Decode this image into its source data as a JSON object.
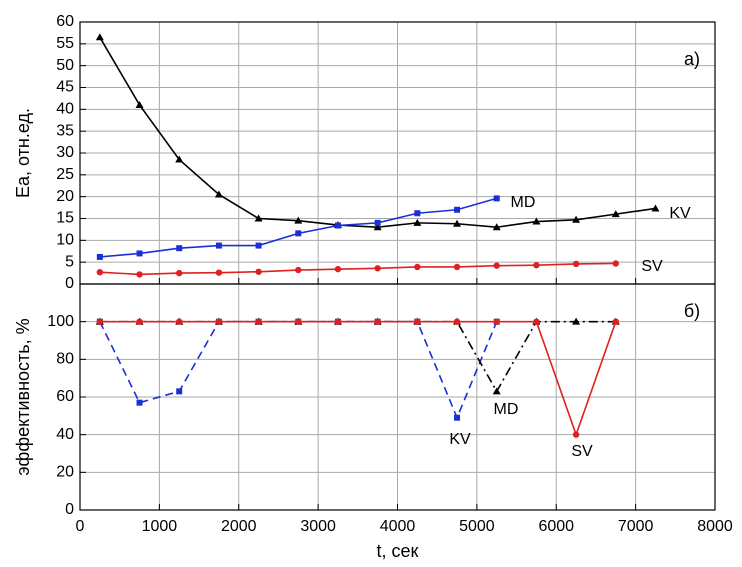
{
  "chart_data": [
    {
      "type": "line",
      "ylabel": "Ea, отн.ед.",
      "panel_label": "а)",
      "xlim": [
        0,
        8000
      ],
      "xticks": [
        0,
        1000,
        2000,
        3000,
        4000,
        5000,
        6000,
        7000,
        8000
      ],
      "ylim": [
        0,
        60
      ],
      "yticks": [
        0,
        5,
        10,
        15,
        20,
        25,
        30,
        35,
        40,
        45,
        50,
        55,
        60
      ],
      "grid": true,
      "series": [
        {
          "name": "MD",
          "color": "#000000",
          "marker": "triangle",
          "dash": "solid",
          "x": [
            250,
            750,
            1250,
            1750,
            2250,
            2750,
            3250,
            3750,
            4250,
            4750,
            5250,
            5750,
            6250,
            6750,
            7250
          ],
          "values": [
            56.5,
            41,
            28.5,
            20.5,
            15,
            14.5,
            13.5,
            13,
            14,
            13.8,
            13,
            14.3,
            14.7,
            16,
            17.3
          ]
        },
        {
          "name": "KV",
          "color": "#1a2fd6",
          "marker": "square",
          "dash": "solid",
          "x": [
            250,
            750,
            1250,
            1750,
            2250,
            2750,
            3250,
            3750,
            4250,
            4750,
            5250
          ],
          "values": [
            6.2,
            7,
            8.2,
            8.8,
            8.8,
            11.6,
            13.4,
            14,
            16.2,
            17,
            19.6
          ]
        },
        {
          "name": "SV",
          "color": "#e02020",
          "marker": "circle",
          "dash": "solid",
          "x": [
            250,
            750,
            1250,
            1750,
            2250,
            2750,
            3250,
            3750,
            4250,
            4750,
            5250,
            5750,
            6250,
            6750
          ],
          "values": [
            2.7,
            2.2,
            2.5,
            2.6,
            2.8,
            3.2,
            3.4,
            3.6,
            3.9,
            3.9,
            4.2,
            4.3,
            4.6,
            4.7
          ]
        }
      ]
    },
    {
      "type": "line",
      "ylabel": "эффективность, %",
      "xlabel": "t, сек",
      "panel_label": "б)",
      "xlim": [
        0,
        8000
      ],
      "xticks": [
        0,
        1000,
        2000,
        3000,
        4000,
        5000,
        6000,
        7000,
        8000
      ],
      "ylim": [
        0,
        120
      ],
      "yticks": [
        0,
        20,
        40,
        60,
        80,
        100
      ],
      "grid": true,
      "series": [
        {
          "name": "KV",
          "color": "#1a2fd6",
          "marker": "square",
          "dash": "dashed",
          "x": [
            250,
            750,
            1250,
            1750,
            2250,
            2750,
            3250,
            3750,
            4250,
            4750,
            5250
          ],
          "values": [
            100,
            57,
            63,
            100,
            100,
            100,
            100,
            100,
            100,
            49,
            100
          ]
        },
        {
          "name": "MD",
          "color": "#000000",
          "marker": "triangle",
          "dash": "dashdot",
          "x": [
            250,
            750,
            1250,
            1750,
            2250,
            2750,
            3250,
            3750,
            4250,
            4750,
            5250,
            5750,
            6250,
            6750
          ],
          "values": [
            100,
            100,
            100,
            100,
            100,
            100,
            100,
            100,
            100,
            100,
            63,
            100,
            100,
            100
          ]
        },
        {
          "name": "SV",
          "color": "#e02020",
          "marker": "circle",
          "dash": "solid",
          "x": [
            250,
            750,
            1250,
            1750,
            2250,
            2750,
            3250,
            3750,
            4250,
            4750,
            5250,
            5750,
            6250,
            6750
          ],
          "values": [
            100,
            100,
            100,
            100,
            100,
            100,
            100,
            100,
            100,
            100,
            100,
            100,
            40,
            100
          ]
        }
      ]
    }
  ]
}
